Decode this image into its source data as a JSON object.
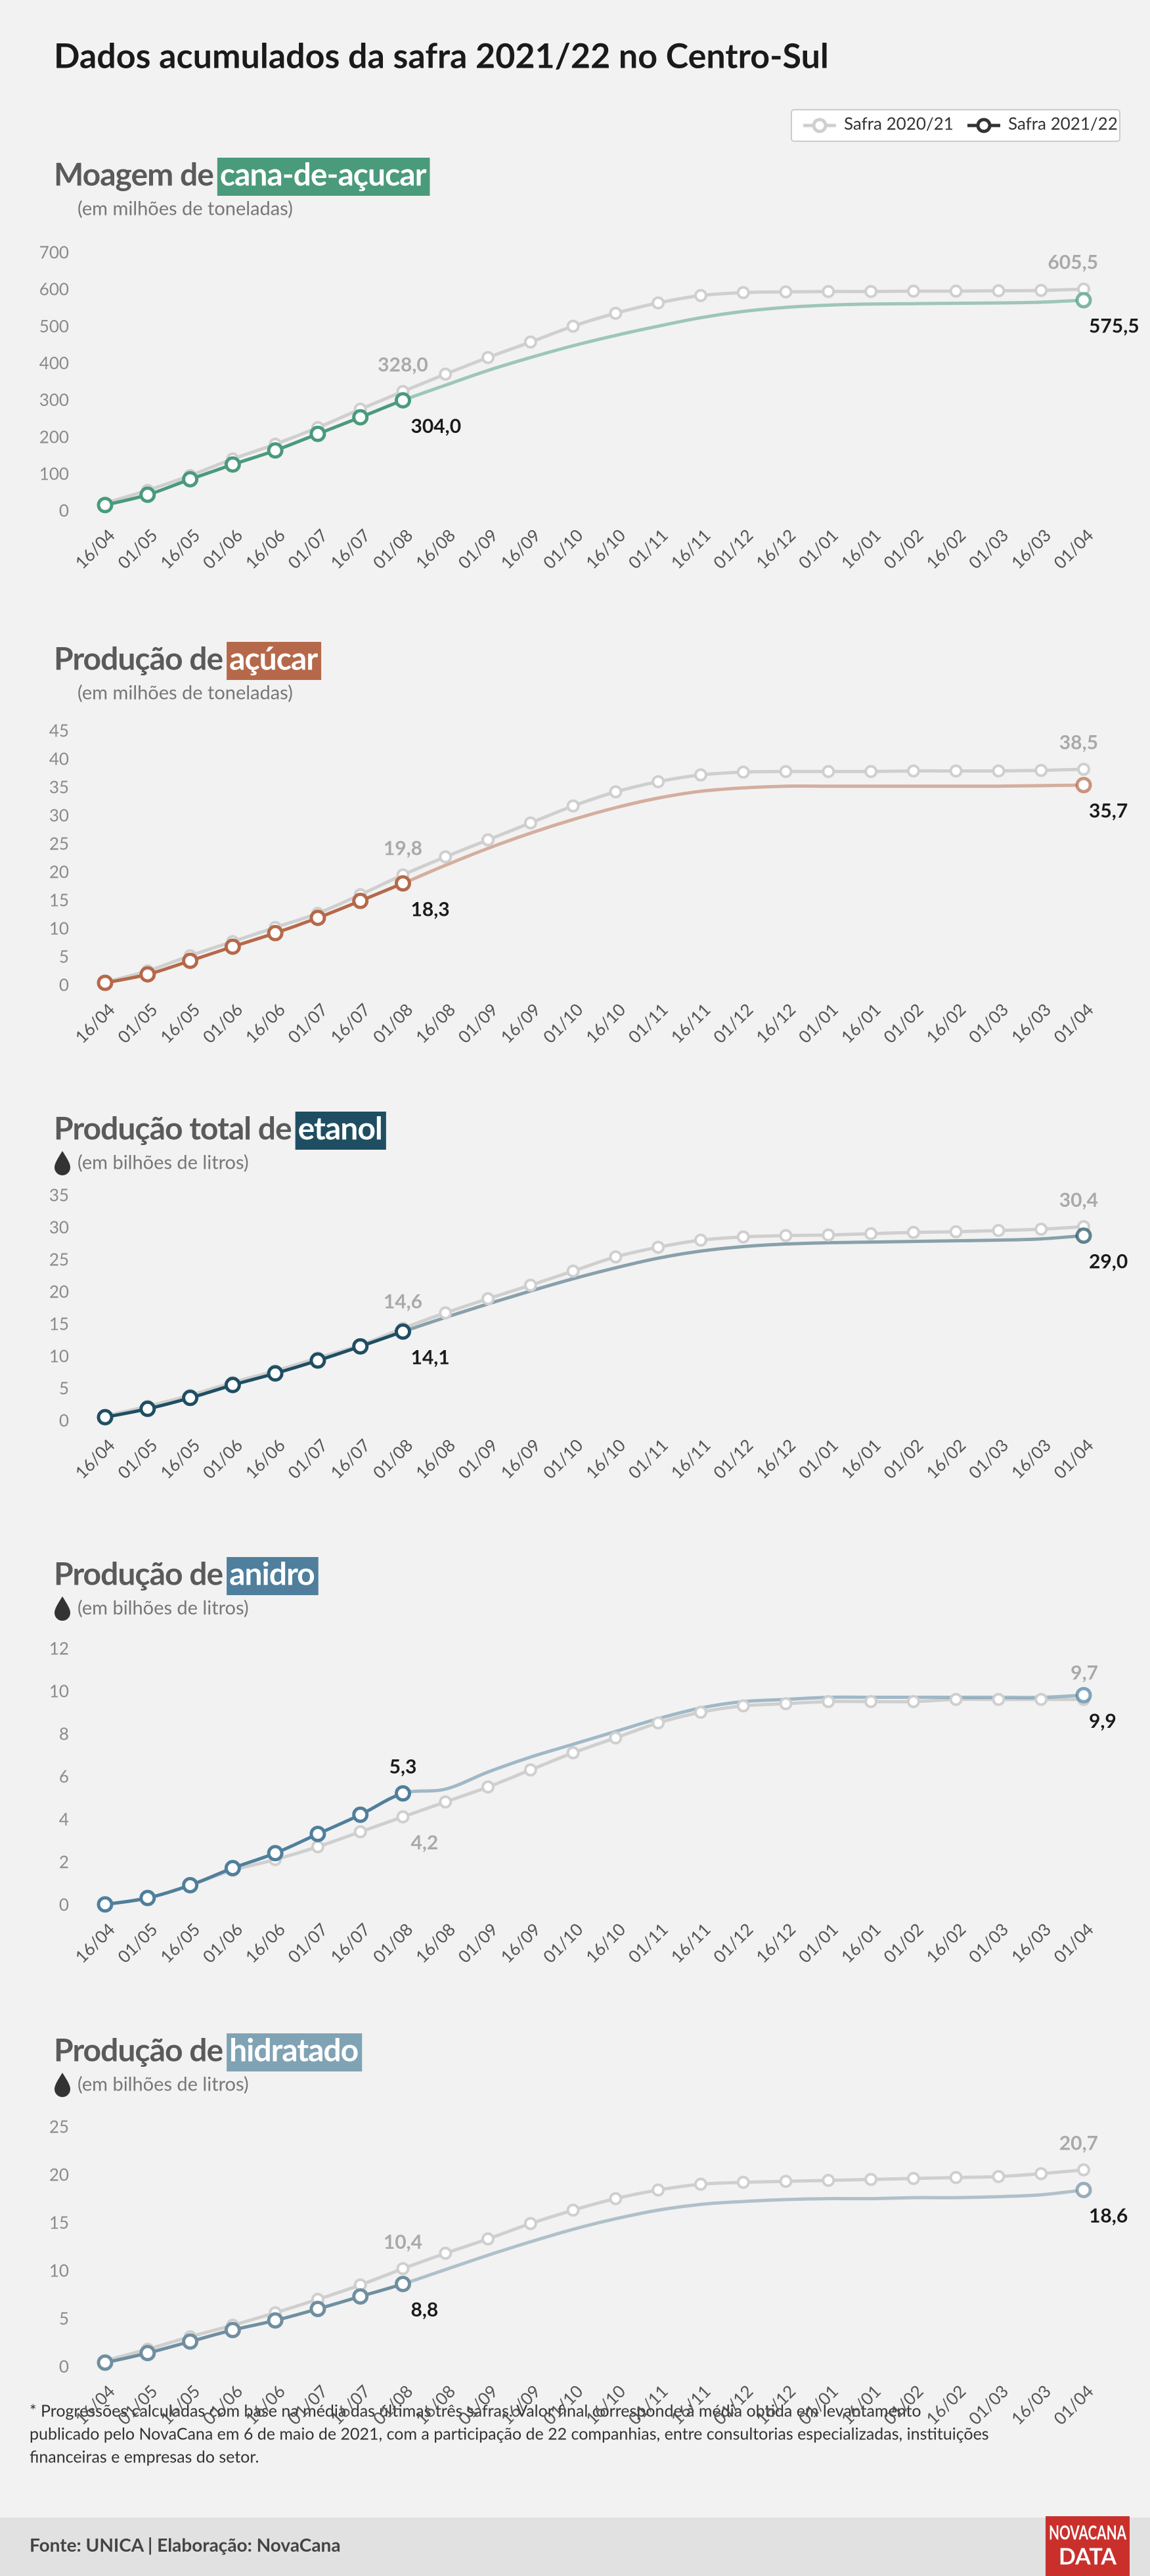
{
  "title": "Dados acumulados da safra 2021/22 no Centro-Sul",
  "footnote": [
    "* Progressões calculadas com base na média das últimas três safras. Valor final corresponde à média obtida em levantamento",
    "publicado pelo NovaCana em 6 de maio de 2021, com a participação de 22 companhias, entre consultorias especializadas, instituições",
    "financeiras e empresas do setor."
  ],
  "source": "Fonte: UNICA | Elaboração: NovaCana",
  "logo": [
    "NOVACANA",
    "DATA"
  ],
  "chart_data": [
    {
      "type": "line",
      "title": "Moagem de",
      "title_highlight": "cana-de-açucar",
      "subtitle": "(em milhões de toneladas)",
      "color": "#4a9a7c",
      "categories": [
        "16/04",
        "01/05",
        "16/05",
        "01/06",
        "16/06",
        "01/07",
        "16/07",
        "01/08",
        "16/08",
        "01/09",
        "16/09",
        "01/10",
        "16/10",
        "01/11",
        "16/11",
        "01/12",
        "16/12",
        "01/01",
        "16/01",
        "01/02",
        "16/02",
        "01/03",
        "16/03",
        "01/04"
      ],
      "ylim": [
        0,
        700
      ],
      "yticks": [
        0,
        100,
        200,
        300,
        400,
        500,
        600,
        700
      ],
      "grid": false,
      "legend": "top-right",
      "series": [
        {
          "name": "Safra 2020/21",
          "color": "#cfcfcf",
          "values": [
            25,
            60,
            100,
            145,
            185,
            230,
            280,
            328,
            375,
            420,
            462,
            505,
            540,
            568,
            588,
            596,
            598,
            599,
            599,
            600,
            600,
            601,
            602,
            605.5
          ],
          "value_labels": [
            null,
            null,
            null,
            null,
            null,
            null,
            null,
            "328,0",
            null,
            null,
            null,
            null,
            null,
            null,
            null,
            null,
            null,
            null,
            null,
            null,
            null,
            null,
            null,
            "605,5"
          ]
        },
        {
          "name": "Safra 2021/22",
          "color": "#4a9a7c",
          "values": [
            20,
            48,
            90,
            130,
            168,
            213,
            258,
            304,
            345,
            385,
            420,
            452,
            480,
            505,
            528,
            545,
            556,
            562,
            565,
            566,
            567,
            568,
            570,
            575.5
          ],
          "value_labels": [
            null,
            null,
            null,
            null,
            null,
            null,
            null,
            "304,0",
            null,
            null,
            null,
            null,
            null,
            null,
            null,
            null,
            null,
            null,
            null,
            null,
            null,
            null,
            null,
            "575,5"
          ]
        }
      ]
    },
    {
      "type": "line",
      "title": "Produção de",
      "title_highlight": "açúcar",
      "subtitle": "(em milhões de toneladas)",
      "color": "#b5694a",
      "categories": [
        "16/04",
        "01/05",
        "16/05",
        "01/06",
        "16/06",
        "01/07",
        "16/07",
        "01/08",
        "16/08",
        "01/09",
        "16/09",
        "01/10",
        "16/10",
        "01/11",
        "16/11",
        "01/12",
        "16/12",
        "01/01",
        "16/01",
        "01/02",
        "16/02",
        "01/03",
        "16/03",
        "01/04"
      ],
      "ylim": [
        0,
        45
      ],
      "yticks": [
        0,
        5,
        10,
        15,
        20,
        25,
        30,
        35,
        40,
        45
      ],
      "grid": false,
      "series": [
        {
          "name": "Safra 2020/21",
          "color": "#cfcfcf",
          "values": [
            0.8,
            2.8,
            5.5,
            8,
            10.5,
            13,
            16.3,
            19.8,
            23,
            26,
            29,
            32,
            34.5,
            36.3,
            37.5,
            38,
            38.1,
            38.1,
            38.1,
            38.2,
            38.2,
            38.2,
            38.3,
            38.5
          ],
          "value_labels": [
            null,
            null,
            null,
            null,
            null,
            null,
            null,
            "19,8",
            null,
            null,
            null,
            null,
            null,
            null,
            null,
            null,
            null,
            null,
            null,
            null,
            null,
            null,
            null,
            "38,5"
          ]
        },
        {
          "name": "Safra 2021/22",
          "color": "#b5694a",
          "values": [
            0.7,
            2.2,
            4.6,
            7.1,
            9.5,
            12.2,
            15.2,
            18.3,
            21.5,
            24.5,
            27.2,
            29.6,
            31.7,
            33.4,
            34.6,
            35.2,
            35.5,
            35.5,
            35.5,
            35.5,
            35.5,
            35.5,
            35.6,
            35.7
          ],
          "value_labels": [
            null,
            null,
            null,
            null,
            null,
            null,
            null,
            "18,3",
            null,
            null,
            null,
            null,
            null,
            null,
            null,
            null,
            null,
            null,
            null,
            null,
            null,
            null,
            null,
            "35,7"
          ]
        }
      ]
    },
    {
      "type": "line",
      "title": "Produção total de",
      "title_highlight": "etanol",
      "subtitle": "(em bilhões de litros)",
      "subtitle_icon": "drop",
      "color": "#1f4e63",
      "categories": [
        "16/04",
        "01/05",
        "16/05",
        "01/06",
        "16/06",
        "01/07",
        "16/07",
        "01/08",
        "16/08",
        "01/09",
        "16/09",
        "01/10",
        "16/10",
        "01/11",
        "16/11",
        "01/12",
        "16/12",
        "01/01",
        "16/01",
        "01/02",
        "16/02",
        "01/03",
        "16/03",
        "01/04"
      ],
      "ylim": [
        0,
        35
      ],
      "yticks": [
        0,
        5,
        10,
        15,
        20,
        25,
        30,
        35
      ],
      "grid": false,
      "series": [
        {
          "name": "Safra 2020/21",
          "color": "#cfcfcf",
          "values": [
            1.0,
            2.5,
            4.2,
            6.2,
            8,
            10,
            12,
            14.6,
            17,
            19.2,
            21.3,
            23.5,
            25.7,
            27.2,
            28.3,
            28.8,
            29,
            29.1,
            29.3,
            29.5,
            29.6,
            29.8,
            30,
            30.4
          ],
          "value_labels": [
            null,
            null,
            null,
            null,
            null,
            null,
            null,
            "14,6",
            null,
            null,
            null,
            null,
            null,
            null,
            null,
            null,
            null,
            null,
            null,
            null,
            null,
            null,
            null,
            "30,4"
          ]
        },
        {
          "name": "Safra 2021/22",
          "color": "#1f4e63",
          "values": [
            0.8,
            2.1,
            3.8,
            5.8,
            7.6,
            9.6,
            11.8,
            14.1,
            16.3,
            18.4,
            20.4,
            22.3,
            24,
            25.5,
            26.6,
            27.3,
            27.7,
            27.9,
            28,
            28.1,
            28.2,
            28.3,
            28.5,
            29.0
          ],
          "value_labels": [
            null,
            null,
            null,
            null,
            null,
            null,
            null,
            "14,1",
            null,
            null,
            null,
            null,
            null,
            null,
            null,
            null,
            null,
            null,
            null,
            null,
            null,
            null,
            null,
            "29,0"
          ]
        }
      ]
    },
    {
      "type": "line",
      "title": "Produção de",
      "title_highlight": "anidro",
      "subtitle": "(em bilhões de litros)",
      "subtitle_icon": "drop",
      "color": "#4f7f9c",
      "categories": [
        "16/04",
        "01/05",
        "16/05",
        "01/06",
        "16/06",
        "01/07",
        "16/07",
        "01/08",
        "16/08",
        "01/09",
        "16/09",
        "01/10",
        "16/10",
        "01/11",
        "16/11",
        "01/12",
        "16/12",
        "01/01",
        "16/01",
        "01/02",
        "16/02",
        "01/03",
        "16/03",
        "01/04"
      ],
      "ylim": [
        0,
        12
      ],
      "yticks": [
        0,
        2,
        4,
        6,
        8,
        10,
        12
      ],
      "grid": false,
      "series": [
        {
          "name": "Safra 2020/21",
          "color": "#cfcfcf",
          "values": [
            0.1,
            0.4,
            1.0,
            1.7,
            2.2,
            2.8,
            3.5,
            4.2,
            4.9,
            5.6,
            6.4,
            7.2,
            7.9,
            8.6,
            9.1,
            9.4,
            9.5,
            9.6,
            9.6,
            9.6,
            9.7,
            9.7,
            9.7,
            9.7
          ],
          "value_labels": [
            null,
            null,
            null,
            null,
            null,
            null,
            null,
            "4,2",
            null,
            null,
            null,
            null,
            null,
            null,
            null,
            null,
            null,
            null,
            null,
            null,
            null,
            null,
            null,
            "9,7"
          ]
        },
        {
          "name": "Safra 2021/22",
          "color": "#4f7f9c",
          "values": [
            0.1,
            0.4,
            1.0,
            1.8,
            2.5,
            3.4,
            4.3,
            5.3,
            5.5,
            6.3,
            7.0,
            7.6,
            8.2,
            8.8,
            9.3,
            9.6,
            9.7,
            9.8,
            9.8,
            9.8,
            9.8,
            9.8,
            9.8,
            9.9
          ],
          "value_labels": [
            null,
            null,
            null,
            null,
            null,
            null,
            null,
            "5,3",
            null,
            null,
            null,
            null,
            null,
            null,
            null,
            null,
            null,
            null,
            null,
            null,
            null,
            null,
            null,
            "9,9"
          ]
        }
      ]
    },
    {
      "type": "line",
      "title": "Produção de",
      "title_highlight": "hidratado",
      "subtitle": "(em bilhões de litros)",
      "subtitle_icon": "drop",
      "color": "#7fa3b4",
      "categories": [
        "16/04",
        "01/05",
        "16/05",
        "01/06",
        "16/06",
        "01/07",
        "16/07",
        "01/08",
        "16/08",
        "01/09",
        "16/09",
        "01/10",
        "16/10",
        "01/11",
        "16/11",
        "01/12",
        "16/12",
        "01/01",
        "16/01",
        "01/02",
        "16/02",
        "01/03",
        "16/03",
        "01/04"
      ],
      "ylim": [
        0,
        25
      ],
      "yticks": [
        0,
        5,
        10,
        15,
        20,
        25
      ],
      "grid": false,
      "series": [
        {
          "name": "Safra 2020/21",
          "color": "#cfcfcf",
          "values": [
            0.8,
            2,
            3.3,
            4.5,
            5.8,
            7.2,
            8.7,
            10.4,
            12,
            13.5,
            15.1,
            16.5,
            17.7,
            18.6,
            19.2,
            19.4,
            19.5,
            19.6,
            19.7,
            19.8,
            19.9,
            20,
            20.3,
            20.7
          ],
          "value_labels": [
            null,
            null,
            null,
            null,
            null,
            null,
            null,
            "10,4",
            null,
            null,
            null,
            null,
            null,
            null,
            null,
            null,
            null,
            null,
            null,
            null,
            null,
            null,
            null,
            "20,7"
          ]
        },
        {
          "name": "Safra 2021/22",
          "color": "#6f8fa0",
          "values": [
            0.6,
            1.6,
            2.8,
            4,
            5,
            6.2,
            7.5,
            8.8,
            10.3,
            11.8,
            13.2,
            14.5,
            15.6,
            16.5,
            17.1,
            17.4,
            17.6,
            17.7,
            17.7,
            17.8,
            17.8,
            17.9,
            18.1,
            18.6
          ],
          "value_labels": [
            null,
            null,
            null,
            null,
            null,
            null,
            null,
            "8,8",
            null,
            null,
            null,
            null,
            null,
            null,
            null,
            null,
            null,
            null,
            null,
            null,
            null,
            null,
            null,
            "18,6"
          ]
        }
      ]
    }
  ]
}
